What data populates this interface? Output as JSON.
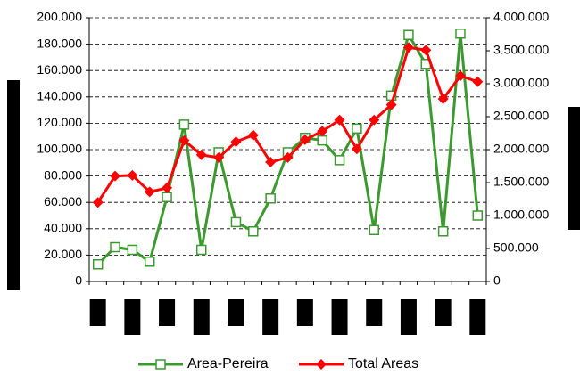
{
  "chart_data": {
    "type": "line",
    "categories": [
      null,
      null,
      null,
      null,
      null,
      null,
      null,
      null,
      null,
      null,
      null,
      null,
      null,
      null,
      null,
      null,
      null,
      null,
      null,
      null,
      null,
      null,
      null
    ],
    "series": [
      {
        "name": "Area-Pereira",
        "color": "#3a9a2e",
        "marker": "square",
        "axis": "y",
        "values": [
          13000,
          26000,
          24000,
          15000,
          64000,
          119000,
          24000,
          98000,
          45000,
          38000,
          63000,
          98000,
          109000,
          107000,
          92000,
          116000,
          39000,
          141000,
          187000,
          165000,
          38000,
          188000,
          50000
        ]
      },
      {
        "name": "Total Areas",
        "color": "#ff0000",
        "marker": "diamond",
        "axis": "y2",
        "values": [
          1200000,
          1600000,
          1610000,
          1360000,
          1420000,
          2140000,
          1920000,
          1880000,
          2120000,
          2220000,
          1810000,
          1880000,
          2150000,
          2280000,
          2450000,
          2010000,
          2450000,
          2680000,
          3550000,
          3510000,
          2770000,
          3120000,
          3030000
        ]
      }
    ],
    "ylim": [
      0,
      200000
    ],
    "yticks": [
      0,
      {
        "value": 20000,
        "label": "20.000"
      },
      {
        "value": 40000,
        "label": "40.000"
      },
      {
        "value": 60000,
        "label": "60.000"
      },
      {
        "value": 80000,
        "label": "80.000"
      },
      {
        "value": 100000,
        "label": "100.000"
      },
      {
        "value": 120000,
        "label": "120.000"
      },
      {
        "value": 140000,
        "label": "140.000"
      },
      {
        "value": 160000,
        "label": "160.000"
      },
      {
        "value": 180000,
        "label": "180.000"
      },
      {
        "value": 200000,
        "label": "200.000"
      }
    ],
    "y2lim": [
      0,
      4000000
    ],
    "y2ticks": [
      0,
      {
        "value": 500000,
        "label": "500.000"
      },
      {
        "value": 1000000,
        "label": "1.000.000"
      },
      {
        "value": 1500000,
        "label": "1.500.000"
      },
      {
        "value": 2000000,
        "label": "2.000.000"
      },
      {
        "value": 2500000,
        "label": "2.500.000"
      },
      {
        "value": 3000000,
        "label": "3.000.000"
      },
      {
        "value": 3500000,
        "label": "3.500.000"
      },
      {
        "value": 4000000,
        "label": "4.000.000"
      }
    ],
    "grid": true,
    "legend": "bottom"
  }
}
